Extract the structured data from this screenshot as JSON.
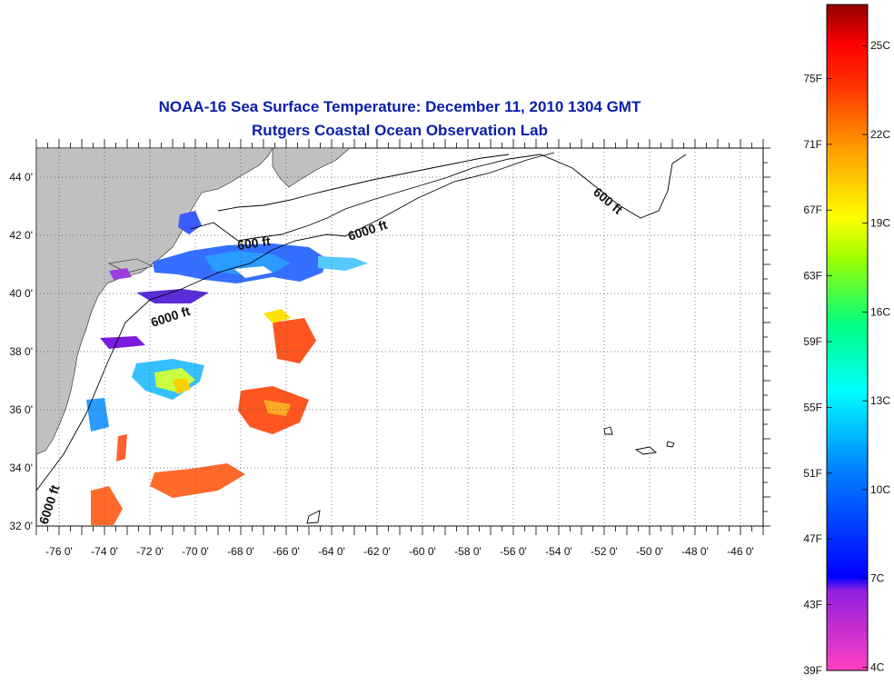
{
  "title": "NOAA-16 Sea Surface Temperature:  December 11, 2010 1304 GMT",
  "subtitle": "Rutgers Coastal Ocean Observation Lab",
  "map": {
    "lon_range": [
      -77,
      -45
    ],
    "lat_range": [
      32,
      45
    ],
    "lon_ticks": [
      "-76 0'",
      "-74 0'",
      "-72 0'",
      "-70 0'",
      "-68 0'",
      "-66 0'",
      "-64 0'",
      "-62 0'",
      "-60 0'",
      "-58 0'",
      "-56 0'",
      "-54 0'",
      "-52 0'",
      "-50 0'",
      "-48 0'",
      "-46 0'"
    ],
    "lat_ticks": [
      "44 0'",
      "42 0'",
      "40 0'",
      "38 0'",
      "36 0'",
      "34 0'",
      "32 0'"
    ],
    "isobath_labels": [
      "600 ft",
      "6000 ft",
      "600 ft",
      "6000 ft",
      "6000 ft"
    ],
    "land_color": "#c0c0c0",
    "grid": true
  },
  "colorbar": {
    "fahrenheit_labels": [
      "75F",
      "71F",
      "67F",
      "63F",
      "59F",
      "55F",
      "51F",
      "47F",
      "43F",
      "39F"
    ],
    "celsius_labels": [
      "25C",
      "22C",
      "19C",
      "16C",
      "13C",
      "10C",
      "7C",
      "4C"
    ],
    "colors": [
      "#ff40c0",
      "#9020e0",
      "#0000ff",
      "#00a0ff",
      "#00ffff",
      "#00ff80",
      "#a0ff00",
      "#ffff00",
      "#ffa000",
      "#ff4000",
      "#ff0000",
      "#a00000"
    ]
  }
}
